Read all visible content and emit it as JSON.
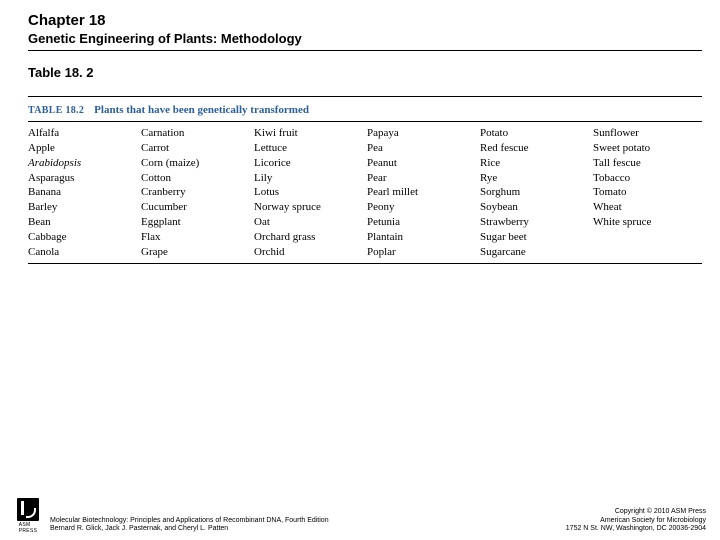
{
  "header": {
    "chapter": "Chapter 18",
    "subtitle": "Genetic Engineering of Plants: Methodology"
  },
  "table_label": "Table 18. 2",
  "table": {
    "title_num": "TABLE 18.2",
    "title_text": "Plants that have been genetically transformed",
    "title_color": "#2a5f9e",
    "columns": [
      [
        {
          "name": "Alfalfa",
          "italic": false
        },
        {
          "name": "Apple",
          "italic": false
        },
        {
          "name": "Arabidopsis",
          "italic": true
        },
        {
          "name": "Asparagus",
          "italic": false
        },
        {
          "name": "Banana",
          "italic": false
        },
        {
          "name": "Barley",
          "italic": false
        },
        {
          "name": "Bean",
          "italic": false
        },
        {
          "name": "Cabbage",
          "italic": false
        },
        {
          "name": "Canola",
          "italic": false
        }
      ],
      [
        {
          "name": "Carnation",
          "italic": false
        },
        {
          "name": "Carrot",
          "italic": false
        },
        {
          "name": "Corn (maize)",
          "italic": false
        },
        {
          "name": "Cotton",
          "italic": false
        },
        {
          "name": "Cranberry",
          "italic": false
        },
        {
          "name": "Cucumber",
          "italic": false
        },
        {
          "name": "Eggplant",
          "italic": false
        },
        {
          "name": "Flax",
          "italic": false
        },
        {
          "name": "Grape",
          "italic": false
        }
      ],
      [
        {
          "name": "Kiwi fruit",
          "italic": false
        },
        {
          "name": "Lettuce",
          "italic": false
        },
        {
          "name": "Licorice",
          "italic": false
        },
        {
          "name": "Lily",
          "italic": false
        },
        {
          "name": "Lotus",
          "italic": false
        },
        {
          "name": "Norway spruce",
          "italic": false
        },
        {
          "name": "Oat",
          "italic": false
        },
        {
          "name": "Orchard grass",
          "italic": false
        },
        {
          "name": "Orchid",
          "italic": false
        }
      ],
      [
        {
          "name": "Papaya",
          "italic": false
        },
        {
          "name": "Pea",
          "italic": false
        },
        {
          "name": "Peanut",
          "italic": false
        },
        {
          "name": "Pear",
          "italic": false
        },
        {
          "name": "Pearl millet",
          "italic": false
        },
        {
          "name": "Peony",
          "italic": false
        },
        {
          "name": "Petunia",
          "italic": false
        },
        {
          "name": "Plantain",
          "italic": false
        },
        {
          "name": "Poplar",
          "italic": false
        }
      ],
      [
        {
          "name": "Potato",
          "italic": false
        },
        {
          "name": "Red fescue",
          "italic": false
        },
        {
          "name": "Rice",
          "italic": false
        },
        {
          "name": "Rye",
          "italic": false
        },
        {
          "name": "Sorghum",
          "italic": false
        },
        {
          "name": "Soybean",
          "italic": false
        },
        {
          "name": "Strawberry",
          "italic": false
        },
        {
          "name": "Sugar beet",
          "italic": false
        },
        {
          "name": "Sugarcane",
          "italic": false
        }
      ],
      [
        {
          "name": "Sunflower",
          "italic": false
        },
        {
          "name": "Sweet potato",
          "italic": false
        },
        {
          "name": "Tall fescue",
          "italic": false
        },
        {
          "name": "Tobacco",
          "italic": false
        },
        {
          "name": "Tomato",
          "italic": false
        },
        {
          "name": "Wheat",
          "italic": false
        },
        {
          "name": "White spruce",
          "italic": false
        }
      ]
    ]
  },
  "footer": {
    "logo_label": "ASM",
    "logo_sub": "PRESS",
    "left_line1": "Molecular Biotechnology: Principles and Applications of Recombinant DNA, Fourth Edition",
    "left_line2": "Bernard R. Glick, Jack J. Pasternak, and Cheryl L. Patten",
    "right_line1": "Copyright © 2010 ASM Press",
    "right_line2": "American Society for Microbiology",
    "right_line3": "1752 N St. NW, Washington, DC 20036-2904"
  }
}
